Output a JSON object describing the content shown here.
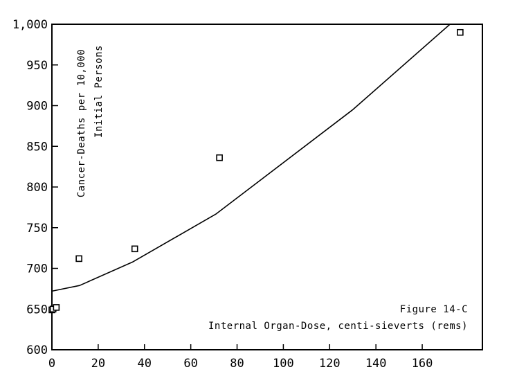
{
  "chart_data": {
    "type": "scatter",
    "ylabel_line1": "Cancer-Deaths per 10,000",
    "ylabel_line2": "Initial Persons",
    "figure_label": "Figure 14-C",
    "xlabel": "Internal Organ-Dose, centi-sieverts (rems)",
    "xlim": [
      0,
      186
    ],
    "ylim": [
      600,
      1000
    ],
    "x_ticks": [
      0,
      20,
      40,
      60,
      80,
      100,
      120,
      140,
      160
    ],
    "y_ticks": [
      600,
      650,
      700,
      750,
      800,
      850,
      900,
      950,
      1000
    ],
    "x_tick_labels": [
      "0",
      "20",
      "40",
      "60",
      "80",
      "100",
      "120",
      "140",
      "160"
    ],
    "y_tick_labels": [
      "600",
      "650",
      "700",
      "750",
      "800",
      "850",
      "900",
      "950",
      "1,000"
    ],
    "grid": false,
    "series": [
      {
        "kind": "points",
        "marker": "open-square",
        "x": [
          0,
          0.5,
          1.9,
          11.7,
          35.8,
          72.4,
          176.4
        ],
        "y": [
          649,
          650,
          652,
          712,
          724,
          836,
          990
        ]
      },
      {
        "kind": "curve",
        "x": [
          0,
          12,
          35,
          71,
          130,
          172
        ],
        "y": [
          672,
          679,
          708,
          767,
          895,
          1000
        ]
      }
    ]
  }
}
